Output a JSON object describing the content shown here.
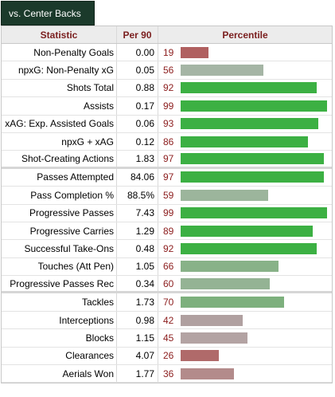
{
  "tab": {
    "label": "vs. Center Backs"
  },
  "header": {
    "statistic": "Statistic",
    "per90": "Per 90",
    "percentile": "Percentile"
  },
  "colors": {
    "high": "#3cb043",
    "mid": "#9eb59e",
    "mid_low": "#b3a3a3",
    "low": "#b06060"
  },
  "rows": [
    {
      "stat": "Non-Penalty Goals",
      "per90": "0.00",
      "percentile": 19,
      "color": "#b06060"
    },
    {
      "stat": "npxG: Non-Penalty xG",
      "per90": "0.05",
      "percentile": 56,
      "color": "#a5b5a5"
    },
    {
      "stat": "Shots Total",
      "per90": "0.88",
      "percentile": 92,
      "color": "#3cb043"
    },
    {
      "stat": "Assists",
      "per90": "0.17",
      "percentile": 99,
      "color": "#3cb043"
    },
    {
      "stat": "xAG: Exp. Assisted Goals",
      "per90": "0.06",
      "percentile": 93,
      "color": "#3cb043"
    },
    {
      "stat": "npxG + xAG",
      "per90": "0.12",
      "percentile": 86,
      "color": "#3cb043"
    },
    {
      "stat": "Shot-Creating Actions",
      "per90": "1.83",
      "percentile": 97,
      "color": "#3cb043"
    },
    {
      "stat": "Passes Attempted",
      "per90": "84.06",
      "percentile": 97,
      "color": "#3cb043"
    },
    {
      "stat": "Pass Completion %",
      "per90": "88.5%",
      "percentile": 59,
      "color": "#9cb59c"
    },
    {
      "stat": "Progressive Passes",
      "per90": "7.43",
      "percentile": 99,
      "color": "#3cb043"
    },
    {
      "stat": "Progressive Carries",
      "per90": "1.29",
      "percentile": 89,
      "color": "#3cb043"
    },
    {
      "stat": "Successful Take-Ons",
      "per90": "0.48",
      "percentile": 92,
      "color": "#3cb043"
    },
    {
      "stat": "Touches (Att Pen)",
      "per90": "1.05",
      "percentile": 66,
      "color": "#88b288"
    },
    {
      "stat": "Progressive Passes Rec",
      "per90": "0.34",
      "percentile": 60,
      "color": "#94b394"
    },
    {
      "stat": "Tackles",
      "per90": "1.73",
      "percentile": 70,
      "color": "#7db07d"
    },
    {
      "stat": "Interceptions",
      "per90": "0.98",
      "percentile": 42,
      "color": "#b0a0a0"
    },
    {
      "stat": "Blocks",
      "per90": "1.15",
      "percentile": 45,
      "color": "#b3a3a3"
    },
    {
      "stat": "Clearances",
      "per90": "4.07",
      "percentile": 26,
      "color": "#b06a6a"
    },
    {
      "stat": "Aerials Won",
      "per90": "1.77",
      "percentile": 36,
      "color": "#b38b8b"
    }
  ]
}
